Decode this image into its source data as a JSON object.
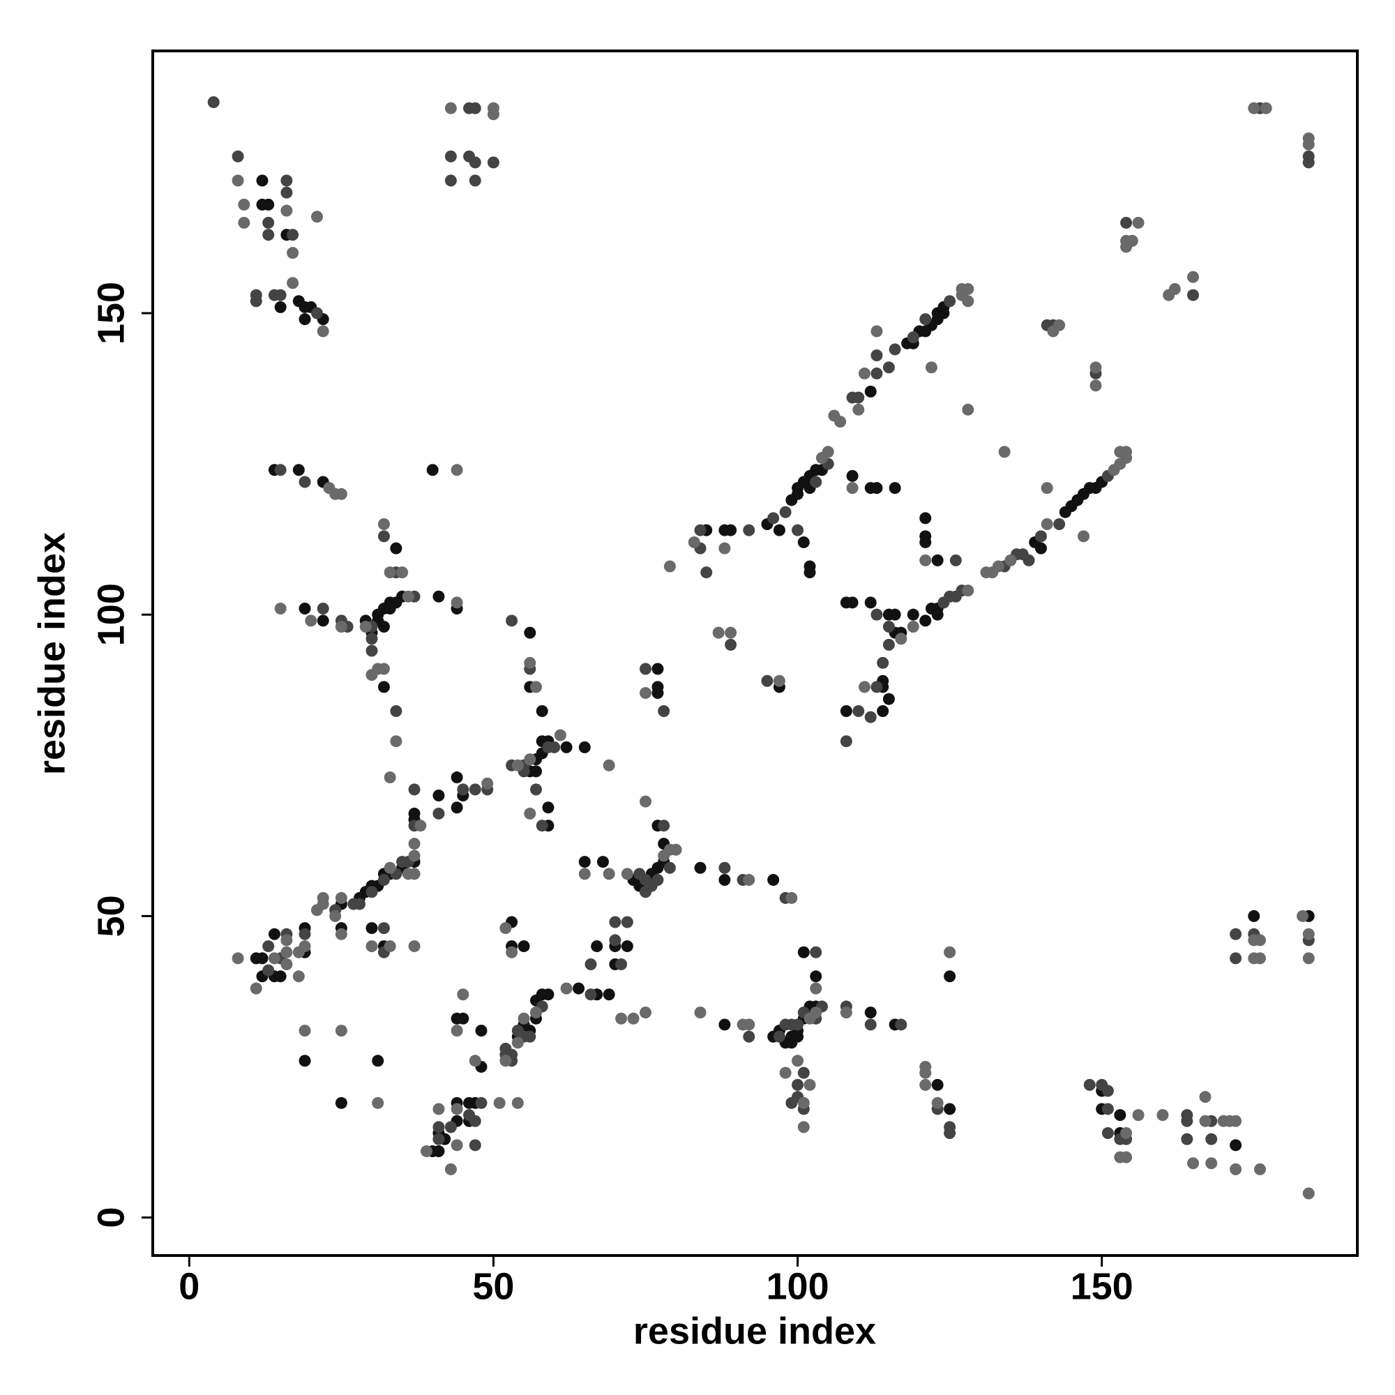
{
  "chart_data": {
    "type": "scatter",
    "xlabel": "residue index",
    "ylabel": "residue index",
    "xlim": [
      -6,
      192
    ],
    "ylim": [
      -6.3,
      193.5
    ],
    "xticks": [
      0,
      50,
      100,
      150
    ],
    "yticks": [
      0,
      50,
      100,
      150
    ],
    "grid": false,
    "series": [
      {
        "color": "#111111",
        "x": [
          12,
          13,
          18,
          19,
          20,
          19,
          22,
          15,
          12,
          16,
          121,
          122,
          123,
          123,
          124,
          124,
          120,
          119,
          118,
          112,
          100,
          101,
          102,
          102,
          103,
          100,
          99,
          104,
          145,
          146,
          147,
          148,
          149,
          150,
          144,
          139,
          140,
          109,
          112,
          113,
          116,
          121,
          121,
          121,
          123,
          108,
          109,
          112,
          115,
          116,
          116,
          117,
          114,
          114,
          115,
          114,
          108,
          122,
          123,
          123,
          121,
          119,
          85,
          88,
          89,
          95,
          97,
          101,
          102,
          102,
          77,
          77,
          77,
          97,
          18,
          14,
          22,
          40,
          34,
          19,
          22,
          29,
          30,
          31,
          31,
          32,
          32,
          33,
          33,
          34,
          35,
          41,
          44,
          32,
          56,
          56,
          58,
          56,
          57,
          57,
          58,
          58,
          59,
          62,
          65,
          59,
          59,
          37,
          37,
          37,
          35,
          33,
          32,
          31,
          30,
          29,
          28,
          25,
          41,
          44,
          44,
          45,
          65,
          68,
          73,
          74,
          76,
          77,
          78,
          78,
          77,
          84,
          88,
          96,
          19,
          19,
          25,
          30,
          32,
          11,
          12,
          12,
          14,
          15,
          14,
          19,
          31,
          25,
          53,
          53,
          55,
          70,
          72,
          70,
          67,
          64,
          67,
          69,
          54,
          55,
          56,
          57,
          57,
          58,
          59,
          48,
          48,
          44,
          45,
          44,
          46,
          47,
          46,
          41,
          41,
          40,
          42,
          44,
          88,
          96,
          97,
          98,
          99,
          99,
          100,
          100,
          101,
          102,
          103,
          112,
          116,
          101,
          103,
          123,
          125,
          125,
          150,
          150,
          153,
          153,
          172,
          175,
          184
        ],
        "y": [
          172,
          168,
          152,
          151,
          151,
          149,
          149,
          151,
          168,
          163,
          147,
          148,
          149,
          150,
          150,
          151,
          147,
          145,
          145,
          137,
          120,
          122,
          121,
          123,
          124,
          121,
          119,
          124,
          118,
          119,
          120,
          121,
          121,
          122,
          117,
          112,
          111,
          123,
          121,
          121,
          121,
          116,
          113,
          112,
          109,
          102,
          102,
          102,
          100,
          100,
          97,
          97,
          89,
          88,
          86,
          84,
          84,
          101,
          101,
          100,
          99,
          100,
          114,
          114,
          114,
          115,
          114,
          112,
          108,
          107,
          91,
          88,
          87,
          88,
          124,
          124,
          122,
          124,
          111,
          101,
          99,
          99,
          97,
          99,
          100,
          98,
          101,
          101,
          102,
          102,
          103,
          103,
          101,
          88,
          97,
          88,
          84,
          74,
          76,
          74,
          77,
          79,
          79,
          78,
          78,
          68,
          65,
          67,
          66,
          59,
          58,
          57,
          57,
          55,
          55,
          54,
          53,
          52,
          70,
          73,
          68,
          70,
          59,
          59,
          56,
          55,
          57,
          58,
          59,
          62,
          65,
          58,
          56,
          56,
          48,
          44,
          48,
          48,
          45,
          43,
          43,
          40,
          40,
          40,
          47,
          26,
          26,
          19,
          49,
          45,
          45,
          45,
          45,
          42,
          45,
          38,
          37,
          37,
          30,
          32,
          31,
          33,
          36,
          37,
          37,
          25,
          31,
          33,
          33,
          19,
          19,
          19,
          16,
          14,
          11,
          11,
          13,
          16,
          32,
          30,
          31,
          29,
          30,
          29,
          30,
          31,
          33,
          35,
          35,
          34,
          32,
          44,
          40,
          22,
          18,
          40,
          21,
          18,
          17,
          14,
          12,
          50,
          50
        ]
      },
      {
        "color": "#444444",
        "x": [
          4,
          8,
          13,
          13,
          16,
          16,
          17,
          11,
          11,
          14,
          15,
          21,
          46,
          47,
          43,
          46,
          47,
          50,
          43,
          47,
          176,
          184,
          184,
          154,
          165,
          142,
          149,
          141,
          113,
          113,
          115,
          116,
          119,
          121,
          125,
          110,
          109,
          98,
          105,
          103,
          143,
          151,
          140,
          136,
          137,
          134,
          138,
          126,
          113,
          115,
          115,
          114,
          113,
          112,
          110,
          108,
          124,
          125,
          126,
          127,
          84,
          84,
          85,
          92,
          96,
          100,
          89,
          95,
          75,
          78,
          15,
          19,
          32,
          34,
          22,
          25,
          26,
          30,
          30,
          30,
          34,
          37,
          53,
          56,
          53,
          55,
          55,
          59,
          60,
          57,
          58,
          37,
          37,
          36,
          35,
          34,
          32,
          30,
          28,
          27,
          41,
          45,
          47,
          49,
          74,
          75,
          75,
          76,
          77,
          79,
          78,
          88,
          91,
          98,
          24,
          19,
          13,
          13,
          16,
          15,
          32,
          32,
          70,
          72,
          70,
          71,
          66,
          66,
          52,
          52,
          53,
          53,
          54,
          55,
          57,
          58,
          56,
          47,
          48,
          43,
          41,
          41,
          47,
          46,
          92,
          97,
          98,
          99,
          100,
          101,
          103,
          104,
          108,
          112,
          117,
          101,
          100,
          100,
          101,
          99,
          103,
          123,
          125,
          125,
          148,
          150,
          151,
          151,
          151,
          153,
          154,
          164,
          164,
          164,
          168,
          168,
          172,
          175,
          184,
          172
        ],
        "y": [
          185,
          176,
          165,
          163,
          172,
          170,
          163,
          153,
          152,
          153,
          153,
          150,
          184,
          184,
          176,
          176,
          175,
          175,
          172,
          172,
          184,
          176,
          175,
          165,
          153,
          148,
          140,
          148,
          143,
          140,
          141,
          144,
          146,
          149,
          152,
          136,
          136,
          117,
          125,
          122,
          115,
          123,
          113,
          110,
          110,
          108,
          109,
          109,
          100,
          98,
          95,
          92,
          88,
          83,
          84,
          79,
          102,
          103,
          103,
          104,
          114,
          111,
          107,
          114,
          116,
          114,
          95,
          89,
          91,
          84,
          124,
          122,
          113,
          107,
          101,
          99,
          98,
          98,
          96,
          94,
          84,
          103,
          99,
          91,
          75,
          75,
          74,
          78,
          78,
          71,
          65,
          71,
          65,
          59,
          59,
          57,
          56,
          54,
          52,
          52,
          67,
          71,
          71,
          71,
          57,
          54,
          56,
          55,
          56,
          58,
          65,
          58,
          56,
          53,
          51,
          47,
          41,
          45,
          47,
          43,
          48,
          44,
          46,
          49,
          49,
          42,
          42,
          37,
          28,
          27,
          27,
          26,
          31,
          30,
          34,
          35,
          30,
          16,
          19,
          15,
          15,
          13,
          12,
          17,
          30,
          30,
          32,
          32,
          32,
          34,
          33,
          35,
          35,
          32,
          32,
          24,
          22,
          20,
          18,
          19,
          44,
          18,
          15,
          14,
          22,
          22,
          21,
          18,
          14,
          13,
          13,
          17,
          16,
          13,
          16,
          13,
          47,
          47,
          46,
          43
        ]
      },
      {
        "color": "#6a6a6a",
        "x": [
          8,
          9,
          9,
          16,
          17,
          17,
          21,
          22,
          43,
          50,
          50,
          175,
          177,
          184,
          184,
          154,
          154,
          155,
          156,
          161,
          162,
          165,
          143,
          142,
          149,
          149,
          128,
          134,
          106,
          107,
          110,
          111,
          113,
          122,
          127,
          127,
          128,
          128,
          104,
          105,
          152,
          153,
          153,
          154,
          154,
          141,
          141,
          133,
          135,
          132,
          131,
          147,
          109,
          121,
          117,
          111,
          119,
          128,
          83,
          88,
          79,
          87,
          89,
          97,
          75,
          23,
          24,
          25,
          44,
          32,
          33,
          35,
          15,
          20,
          25,
          29,
          36,
          44,
          31,
          32,
          30,
          34,
          33,
          56,
          57,
          54,
          56,
          56,
          61,
          69,
          37,
          38,
          37,
          37,
          36,
          33,
          25,
          49,
          65,
          69,
          72,
          78,
          79,
          80,
          75,
          92,
          99,
          22,
          22,
          24,
          21,
          19,
          18,
          25,
          30,
          33,
          37,
          8,
          11,
          14,
          16,
          16,
          16,
          18,
          19,
          25,
          31,
          52,
          53,
          62,
          73,
          71,
          52,
          54,
          55,
          57,
          51,
          54,
          47,
          44,
          45,
          44,
          39,
          43,
          41,
          44,
          75,
          84,
          91,
          92,
          102,
          103,
          108,
          100,
          98,
          102,
          101,
          101,
          103,
          121,
          121,
          121,
          123,
          125,
          153,
          154,
          154,
          156,
          160,
          165,
          167,
          167,
          168,
          170,
          171,
          172,
          172,
          176,
          184,
          175,
          175,
          176,
          176,
          183,
          184,
          184
        ],
        "y": [
          172,
          168,
          165,
          167,
          160,
          155,
          166,
          147,
          184,
          184,
          183,
          184,
          184,
          179,
          178,
          162,
          161,
          162,
          165,
          153,
          154,
          156,
          148,
          147,
          141,
          138,
          134,
          127,
          133,
          132,
          134,
          140,
          147,
          141,
          153,
          154,
          152,
          154,
          126,
          127,
          124,
          125,
          127,
          127,
          126,
          121,
          115,
          108,
          109,
          107,
          107,
          113,
          121,
          109,
          96,
          88,
          98,
          104,
          112,
          111,
          108,
          97,
          97,
          89,
          87,
          121,
          120,
          120,
          124,
          115,
          107,
          107,
          101,
          99,
          98,
          98,
          103,
          102,
          91,
          91,
          90,
          79,
          73,
          92,
          88,
          75,
          76,
          67,
          80,
          75,
          62,
          65,
          60,
          57,
          57,
          58,
          53,
          72,
          57,
          57,
          57,
          60,
          61,
          61,
          69,
          56,
          53,
          53,
          52,
          50,
          51,
          45,
          44,
          47,
          45,
          45,
          45,
          43,
          38,
          43,
          42,
          46,
          44,
          40,
          31,
          31,
          19,
          48,
          44,
          38,
          33,
          33,
          26,
          29,
          33,
          34,
          19,
          19,
          26,
          31,
          37,
          18,
          11,
          8,
          18,
          12,
          34,
          34,
          32,
          32,
          33,
          34,
          34,
          26,
          24,
          22,
          19,
          15,
          38,
          25,
          24,
          22,
          19,
          44,
          10,
          10,
          14,
          17,
          17,
          9,
          16,
          20,
          9,
          16,
          16,
          16,
          8,
          8,
          4,
          46,
          43,
          46,
          43,
          50,
          47,
          43
        ]
      }
    ]
  }
}
